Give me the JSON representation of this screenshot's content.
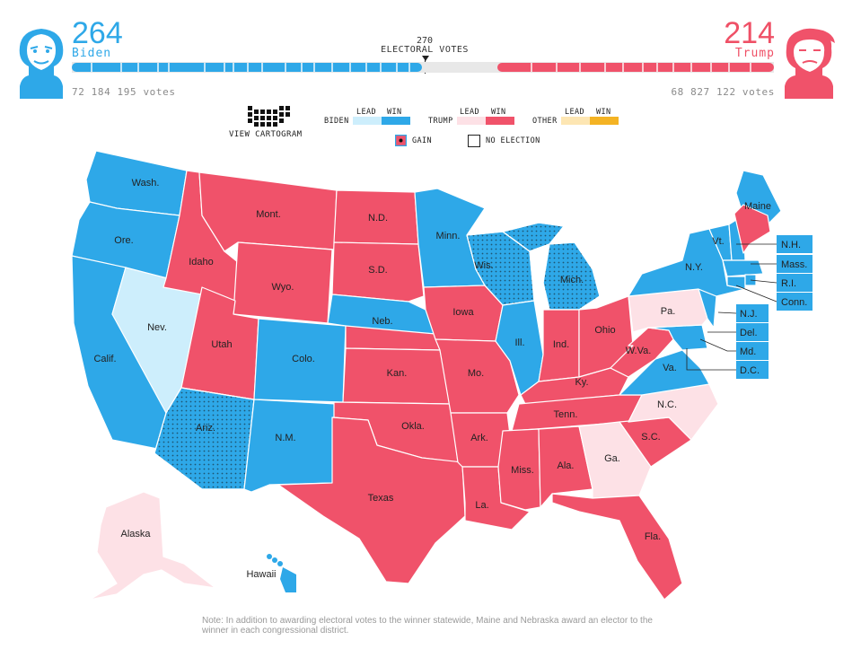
{
  "header": {
    "biden": {
      "count": "264",
      "name": "Biden",
      "votes": "72 184 195 votes"
    },
    "trump": {
      "count": "214",
      "name": "Trump",
      "votes": "68 827 122 votes"
    },
    "threshold": {
      "number": "270",
      "label": "ELECTORAL VOTES"
    }
  },
  "colors": {
    "biden_win": "#2ea8e8",
    "biden_lead": "#cdeefc",
    "trump_win": "#f0526a",
    "trump_lead": "#fde1e6",
    "other_lead": "#fde6b3",
    "other_win": "#f4b324",
    "undecided": "#e5e5e5"
  },
  "legend": {
    "cartogram_label": "VIEW CARTOGRAM",
    "groups": [
      {
        "name": "BIDEN",
        "lead": "LEAD",
        "win": "WIN"
      },
      {
        "name": "TRUMP",
        "lead": "LEAD",
        "win": "WIN"
      },
      {
        "name": "OTHER",
        "lead": "LEAD",
        "win": "WIN"
      }
    ],
    "gain": "GAIN",
    "no_election": "NO ELECTION"
  },
  "states": {
    "wa": "Wash.",
    "or": "Ore.",
    "ca": "Calif.",
    "nv": "Nev.",
    "id": "Idaho",
    "mt": "Mont.",
    "wy": "Wyo.",
    "ut": "Utah",
    "az": "Ariz.",
    "co": "Colo.",
    "nm": "N.M.",
    "nd": "N.D.",
    "sd": "S.D.",
    "ne": "Neb.",
    "ks": "Kan.",
    "ok": "Okla.",
    "tx": "Texas",
    "mn": "Minn.",
    "ia": "Iowa",
    "mo": "Mo.",
    "ar": "Ark.",
    "la": "La.",
    "wi": "Wis.",
    "il": "Ill.",
    "mi": "Mich.",
    "in": "Ind.",
    "oh": "Ohio",
    "ky": "Ky.",
    "tn": "Tenn.",
    "ms": "Miss.",
    "al": "Ala.",
    "ga": "Ga.",
    "fl": "Fla.",
    "sc": "S.C.",
    "nc": "N.C.",
    "va": "Va.",
    "wv": "W.Va.",
    "pa": "Pa.",
    "ny": "N.Y.",
    "vt": "Vt.",
    "me": "Maine",
    "ak": "Alaska",
    "hi": "Hawaii"
  },
  "callouts": {
    "nh": "N.H.",
    "ma": "Mass.",
    "ri": "R.I.",
    "ct": "Conn.",
    "nj": "N.J.",
    "de": "Del.",
    "md": "Md.",
    "dc": "D.C."
  },
  "note": "Note: In addition to awarding electoral votes to the winner statewide, Maine and Nebraska award an elector to the winner in each congressional district."
}
